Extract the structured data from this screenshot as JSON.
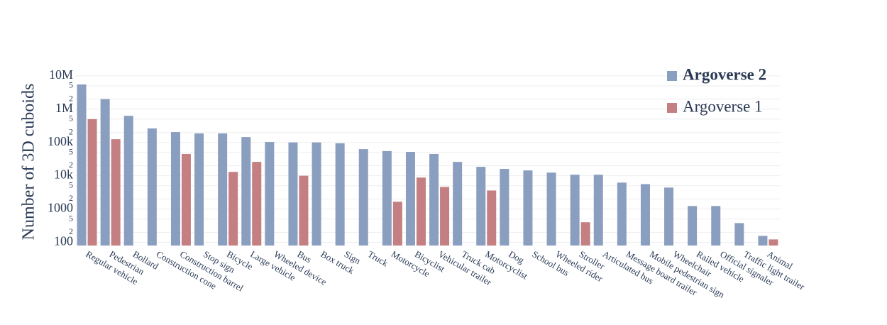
{
  "chart_data": {
    "type": "bar",
    "log_y": true,
    "grid": true,
    "legend": "upper right",
    "ylabel": "Number of 3D cuboids",
    "categories": [
      "Regular vehicle",
      "Pedestrian",
      "Bollard",
      "Construction cone",
      "Construction barrel",
      "Stop sign",
      "Bicycle",
      "Large vehicle",
      "Wheeled device",
      "Bus",
      "Box truck",
      "Sign",
      "Truck",
      "Motorcycle",
      "Bicyclist",
      "Vehicular trailer",
      "Truck cab",
      "Motorcyclist",
      "Dog",
      "School bus",
      "Wheeled rider",
      "Stroller",
      "Articulated bus",
      "Message board trailer",
      "Mobile pedestrian sign",
      "Wheelchair",
      "Railed vehicle",
      "Official signaler",
      "Traffic light trailer",
      "Animal"
    ],
    "series": [
      {
        "name": "Argoverse 2",
        "color": "#8a9ebf",
        "values": [
          5500000,
          2000000,
          630000,
          263000,
          205000,
          186000,
          186000,
          145000,
          103000,
          100000,
          100000,
          94000,
          63000,
          55000,
          52000,
          45000,
          26000,
          18500,
          16000,
          14400,
          12400,
          10700,
          10700,
          6200,
          5600,
          4400,
          1230,
          1230,
          377,
          156
        ]
      },
      {
        "name": "Argoverse 1",
        "color": "#c47f82",
        "values": [
          500000,
          125000,
          null,
          null,
          45000,
          null,
          13000,
          26000,
          null,
          10000,
          null,
          null,
          null,
          1650,
          8800,
          4600,
          null,
          3600,
          null,
          null,
          null,
          400,
          null,
          null,
          null,
          null,
          null,
          null,
          null,
          122
        ]
      }
    ],
    "ylim": [
      80,
      14000000
    ],
    "yticks": [
      100,
      {
        "value": 200,
        "label": "2"
      },
      {
        "value": 500,
        "label": "5"
      },
      1000,
      {
        "value": 2000,
        "label": "2"
      },
      {
        "value": 5000,
        "label": "5"
      },
      {
        "value": 10000,
        "label": "10k"
      },
      {
        "value": 20000,
        "label": "2"
      },
      {
        "value": 50000,
        "label": "5"
      },
      {
        "value": 100000,
        "label": "100k"
      },
      {
        "value": 200000,
        "label": "2"
      },
      {
        "value": 500000,
        "label": "5"
      },
      {
        "value": 1000000,
        "label": "1M"
      },
      {
        "value": 2000000,
        "label": "2"
      },
      {
        "value": 5000000,
        "label": "5"
      },
      {
        "value": 10000000,
        "label": "10M"
      }
    ]
  }
}
